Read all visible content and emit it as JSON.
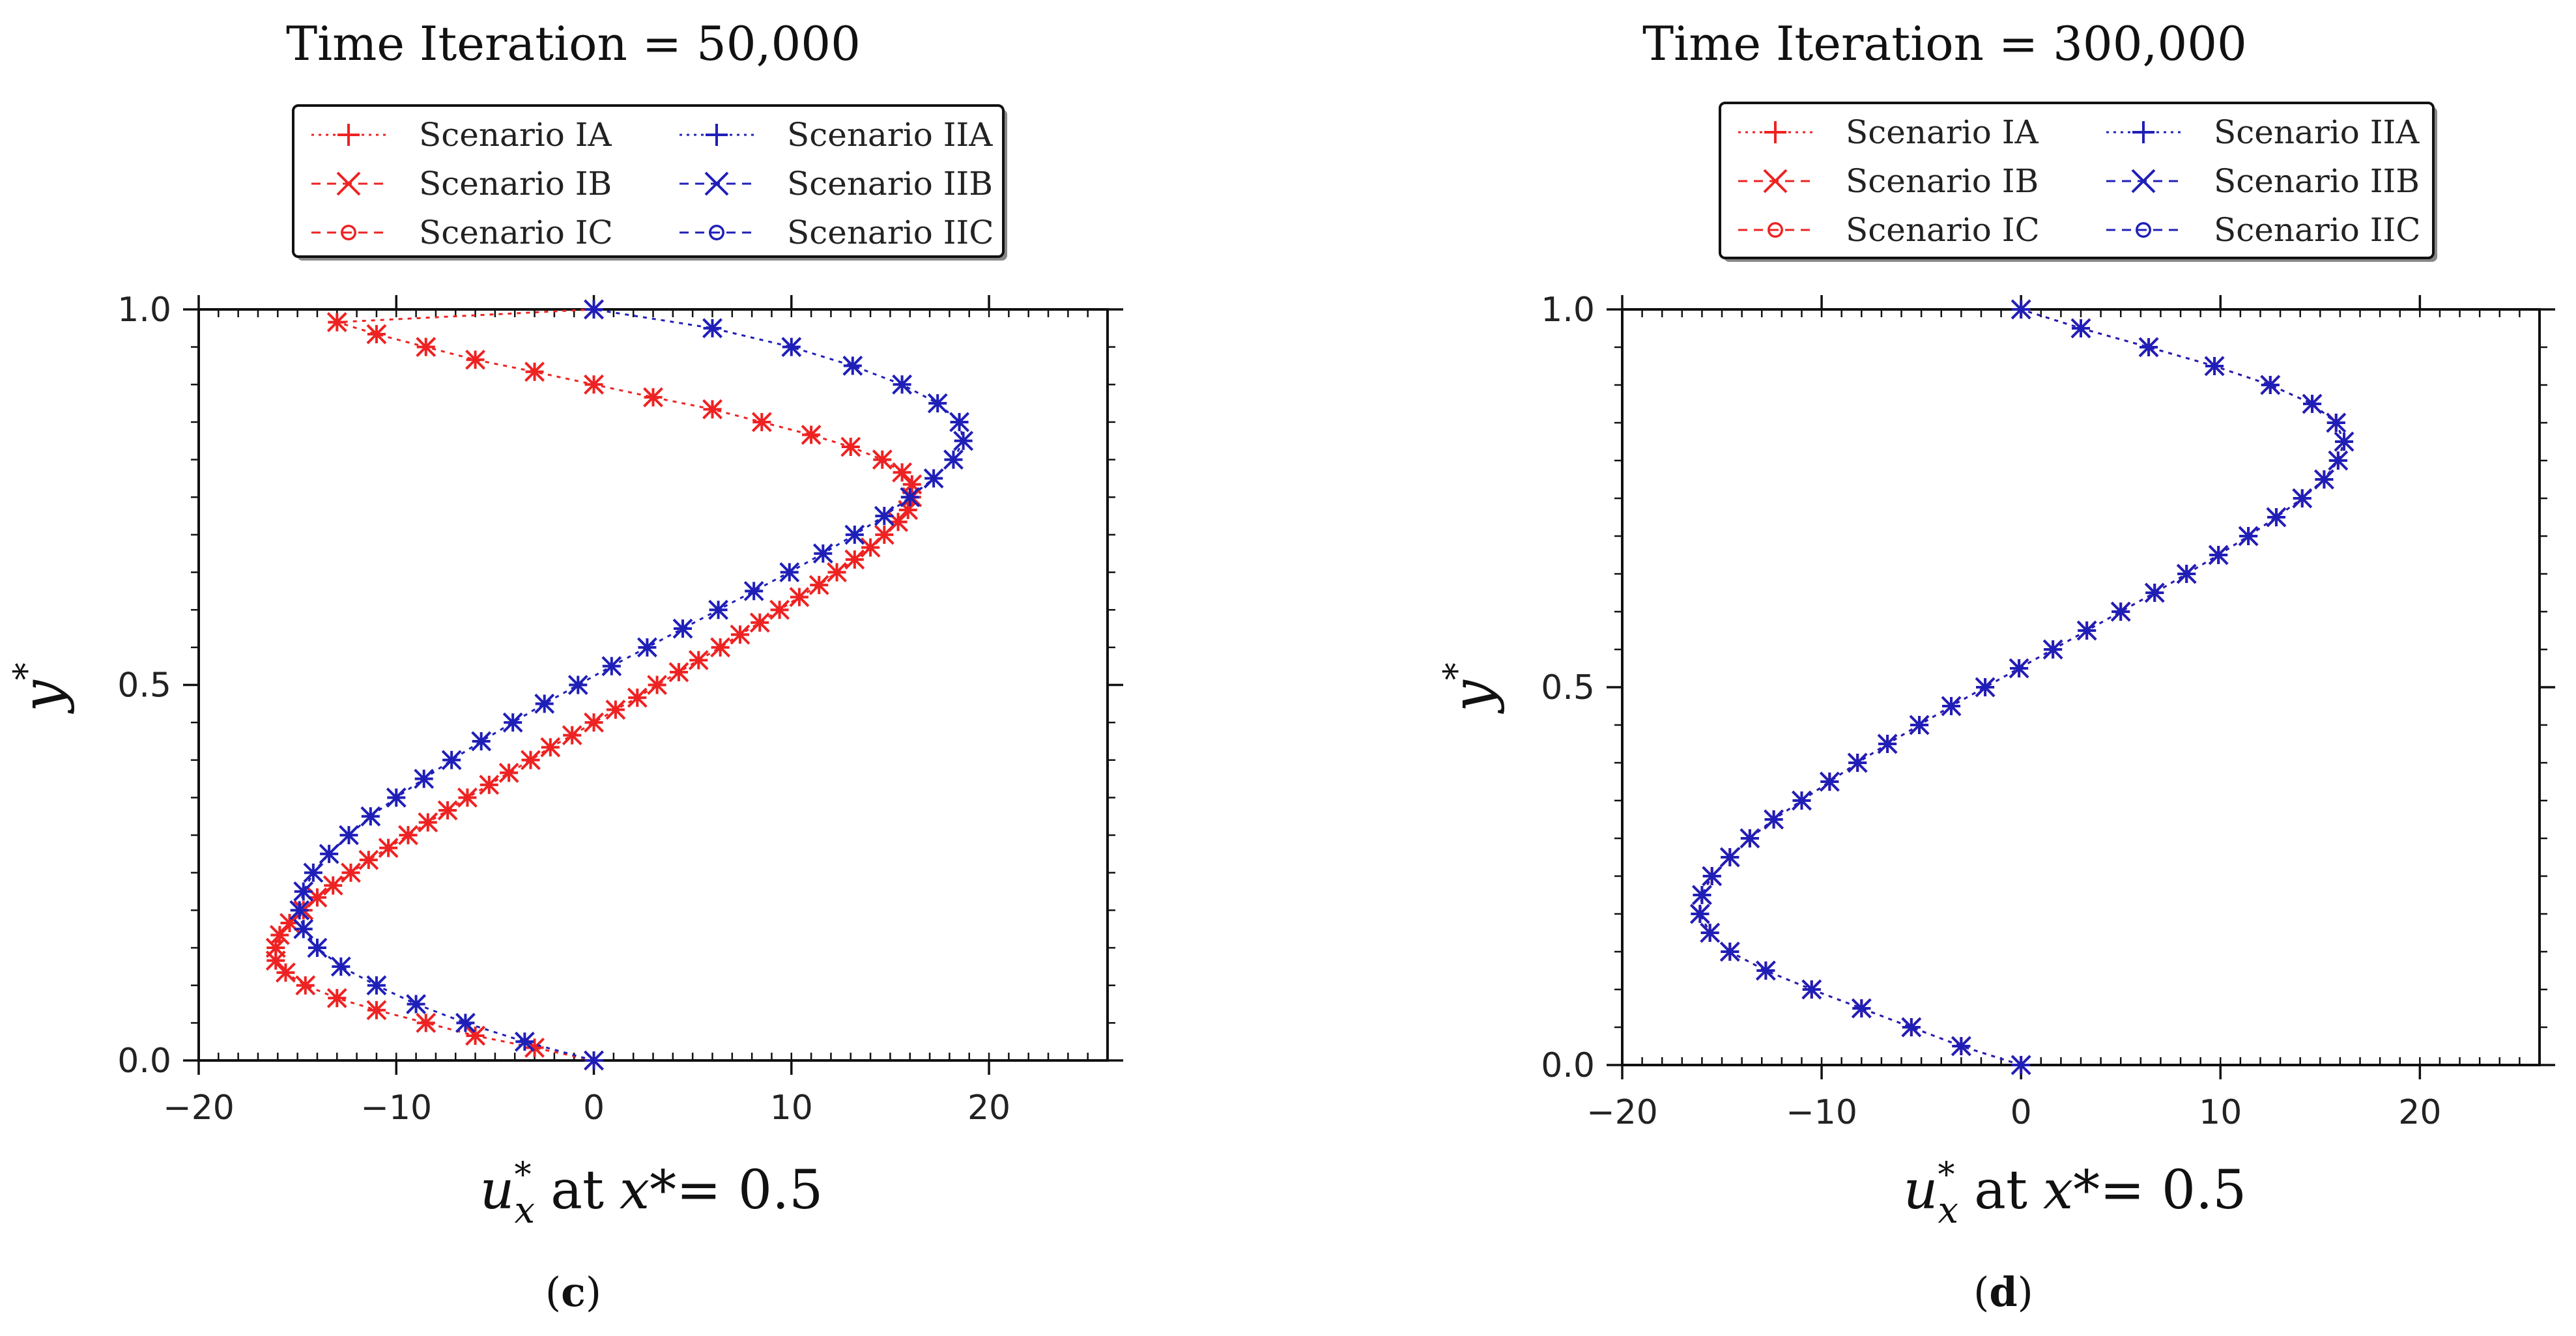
{
  "figure": {
    "xlabel_parts": {
      "var": "u",
      "sup": "*",
      "sub": "x",
      "at": "at",
      "x": "x",
      "eq": "*= 0.5"
    },
    "ylabel_parts": {
      "var": "y",
      "sup": "*"
    }
  },
  "colors": {
    "series_I": "#ee2222",
    "series_II": "#1f1fb8",
    "frame": "#111111"
  },
  "chart_data": [
    {
      "type": "line",
      "panel_label": "c",
      "title": "Time Iteration = 50,000",
      "xlabel": "u*x at x* = 0.5",
      "ylabel": "y*",
      "xlim": [
        -20,
        26
      ],
      "ylim": [
        0,
        1
      ],
      "xticks": [
        -20,
        -10,
        0,
        10,
        20
      ],
      "xtick_labels": [
        "−20",
        "−10",
        "0",
        "10",
        "20"
      ],
      "yticks": [
        0,
        0.5,
        1
      ],
      "ytick_labels": [
        "0.0",
        "0.5",
        "1.0"
      ],
      "legend": [
        {
          "label": "Scenario IA",
          "color": "series_I",
          "marker": "plus",
          "line": "dotted"
        },
        {
          "label": "Scenario IB",
          "color": "series_I",
          "marker": "x",
          "line": "dashed"
        },
        {
          "label": "Scenario IC",
          "color": "series_I",
          "marker": "circle",
          "line": "dashed"
        },
        {
          "label": "Scenario IIA",
          "color": "series_II",
          "marker": "plus",
          "line": "dotted"
        },
        {
          "label": "Scenario IIB",
          "color": "series_II",
          "marker": "x",
          "line": "dashed"
        },
        {
          "label": "Scenario IIC",
          "color": "series_II",
          "marker": "circle",
          "line": "dashed"
        }
      ],
      "series": [
        {
          "name": "Scenario I (IA, IB, IC)",
          "color": "series_I",
          "y": [
            0,
            0.017,
            0.033,
            0.05,
            0.067,
            0.083,
            0.1,
            0.117,
            0.133,
            0.15,
            0.167,
            0.183,
            0.2,
            0.217,
            0.233,
            0.25,
            0.267,
            0.283,
            0.3,
            0.317,
            0.333,
            0.35,
            0.367,
            0.383,
            0.4,
            0.417,
            0.433,
            0.45,
            0.467,
            0.483,
            0.5,
            0.517,
            0.533,
            0.55,
            0.567,
            0.583,
            0.6,
            0.617,
            0.633,
            0.65,
            0.667,
            0.683,
            0.7,
            0.717,
            0.733,
            0.75,
            0.767,
            0.783,
            0.8,
            0.817,
            0.833,
            0.85,
            0.867,
            0.883,
            0.9,
            0.917,
            0.933,
            0.95,
            0.967,
            0.983,
            1
          ],
          "x": [
            0,
            -3,
            -6,
            -8.5,
            -11,
            -13,
            -14.6,
            -15.6,
            -16.1,
            -16.1,
            -15.9,
            -15.4,
            -14.7,
            -14,
            -13.2,
            -12.3,
            -11.4,
            -10.4,
            -9.4,
            -8.4,
            -7.4,
            -6.4,
            -5.3,
            -4.3,
            -3.2,
            -2.2,
            -1.1,
            0,
            1.1,
            2.2,
            3.2,
            4.3,
            5.3,
            6.4,
            7.4,
            8.4,
            9.4,
            10.4,
            11.4,
            12.3,
            13.2,
            14,
            14.7,
            15.4,
            15.9,
            16.1,
            16.1,
            15.6,
            14.6,
            13,
            11,
            8.5,
            6,
            3,
            0,
            -3,
            -6,
            -8.5,
            -11,
            -13,
            0
          ]
        },
        {
          "name": "Scenario II (IIA, IIB, IIC)",
          "color": "series_II",
          "y": [
            0,
            0.025,
            0.05,
            0.075,
            0.1,
            0.125,
            0.15,
            0.175,
            0.2,
            0.225,
            0.25,
            0.275,
            0.3,
            0.325,
            0.35,
            0.375,
            0.4,
            0.425,
            0.45,
            0.475,
            0.5,
            0.525,
            0.55,
            0.575,
            0.6,
            0.625,
            0.65,
            0.675,
            0.7,
            0.725,
            0.75,
            0.775,
            0.8,
            0.825,
            0.85,
            0.875,
            0.9,
            0.925,
            0.95,
            0.975,
            1
          ],
          "x": [
            0,
            -3.5,
            -6.5,
            -9,
            -11,
            -12.8,
            -14,
            -14.7,
            -14.9,
            -14.7,
            -14.2,
            -13.4,
            -12.4,
            -11.3,
            -10,
            -8.6,
            -7.2,
            -5.7,
            -4.1,
            -2.5,
            -0.8,
            0.9,
            2.7,
            4.5,
            6.3,
            8.1,
            9.9,
            11.6,
            13.2,
            14.7,
            16,
            17.2,
            18.2,
            18.7,
            18.5,
            17.4,
            15.6,
            13.1,
            10,
            6,
            0
          ]
        }
      ]
    },
    {
      "type": "line",
      "panel_label": "d",
      "title": "Time Iteration = 300,000",
      "xlabel": "u*x at x* = 0.5",
      "ylabel": "y*",
      "xlim": [
        -20,
        26
      ],
      "ylim": [
        0,
        1
      ],
      "xticks": [
        -20,
        -10,
        0,
        10,
        20
      ],
      "xtick_labels": [
        "−20",
        "−10",
        "0",
        "10",
        "20"
      ],
      "yticks": [
        0,
        0.5,
        1
      ],
      "ytick_labels": [
        "0.0",
        "0.5",
        "1.0"
      ],
      "legend": [
        {
          "label": "Scenario IA",
          "color": "series_I",
          "marker": "plus",
          "line": "dotted"
        },
        {
          "label": "Scenario IB",
          "color": "series_I",
          "marker": "x",
          "line": "dashed"
        },
        {
          "label": "Scenario IC",
          "color": "series_I",
          "marker": "circle",
          "line": "dashed"
        },
        {
          "label": "Scenario IIA",
          "color": "series_II",
          "marker": "plus",
          "line": "dotted"
        },
        {
          "label": "Scenario IIB",
          "color": "series_II",
          "marker": "x",
          "line": "dashed"
        },
        {
          "label": "Scenario IIC",
          "color": "series_II",
          "marker": "circle",
          "line": "dashed"
        }
      ],
      "series": [
        {
          "name": "Scenario I (IA, IB, IC)",
          "color": "series_I",
          "y": [
            0,
            0.025,
            0.05,
            0.075,
            0.1,
            0.125,
            0.15,
            0.175,
            0.2,
            0.225,
            0.25,
            0.275,
            0.3,
            0.325,
            0.35,
            0.375,
            0.4,
            0.425,
            0.45,
            0.475,
            0.5,
            0.525,
            0.55,
            0.575,
            0.6,
            0.625,
            0.65,
            0.675,
            0.7,
            0.725,
            0.75,
            0.775,
            0.8,
            0.825,
            0.85,
            0.875,
            0.9,
            0.925,
            0.95,
            0.975,
            1
          ],
          "x": [
            0,
            -3,
            -5.5,
            -8,
            -10.5,
            -12.8,
            -14.6,
            -15.6,
            -16.1,
            -16,
            -15.5,
            -14.6,
            -13.6,
            -12.4,
            -11,
            -9.6,
            -8.2,
            -6.7,
            -5.1,
            -3.5,
            -1.8,
            -0.1,
            1.6,
            3.3,
            5,
            6.7,
            8.3,
            9.9,
            11.4,
            12.8,
            14.1,
            15.2,
            15.9,
            16.2,
            15.8,
            14.6,
            12.5,
            9.7,
            6.4,
            3,
            0
          ]
        },
        {
          "name": "Scenario II (IIA, IIB, IIC)",
          "color": "series_II",
          "y": [
            0,
            0.025,
            0.05,
            0.075,
            0.1,
            0.125,
            0.15,
            0.175,
            0.2,
            0.225,
            0.25,
            0.275,
            0.3,
            0.325,
            0.35,
            0.375,
            0.4,
            0.425,
            0.45,
            0.475,
            0.5,
            0.525,
            0.55,
            0.575,
            0.6,
            0.625,
            0.65,
            0.675,
            0.7,
            0.725,
            0.75,
            0.775,
            0.8,
            0.825,
            0.85,
            0.875,
            0.9,
            0.925,
            0.95,
            0.975,
            1
          ],
          "x": [
            0,
            -3,
            -5.5,
            -8,
            -10.5,
            -12.8,
            -14.6,
            -15.6,
            -16.1,
            -16,
            -15.5,
            -14.6,
            -13.6,
            -12.4,
            -11,
            -9.6,
            -8.2,
            -6.7,
            -5.1,
            -3.5,
            -1.8,
            -0.1,
            1.6,
            3.3,
            5,
            6.7,
            8.3,
            9.9,
            11.4,
            12.8,
            14.1,
            15.2,
            15.9,
            16.2,
            15.8,
            14.6,
            12.5,
            9.7,
            6.4,
            3,
            0
          ]
        }
      ]
    }
  ]
}
